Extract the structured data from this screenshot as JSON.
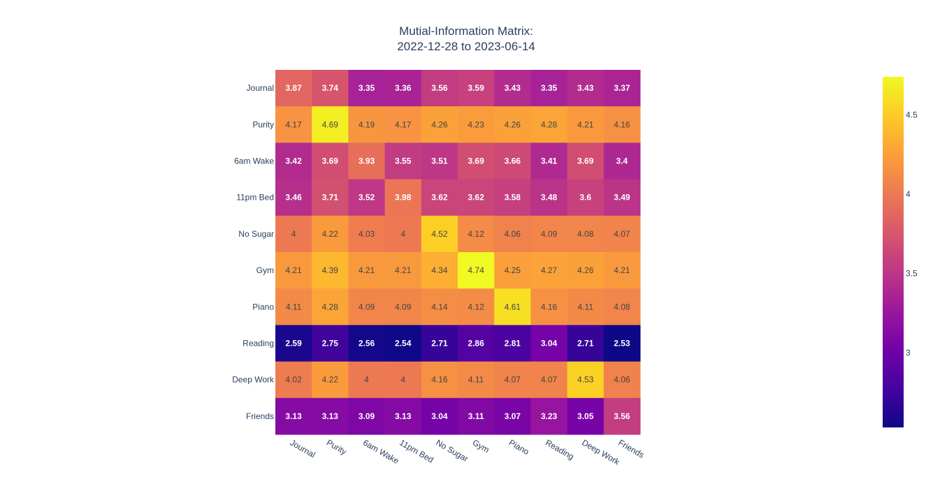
{
  "chart_data": {
    "type": "heatmap",
    "title_line1": "Mutial-Information Matrix:",
    "title_line2": "2022-12-28 to 2023-06-14",
    "x_labels": [
      "Journal",
      "Purity",
      "6am Wake",
      "11pm Bed",
      "No Sugar",
      "Gym",
      "Piano",
      "Reading",
      "Deep Work",
      "Friends"
    ],
    "y_labels": [
      "Journal",
      "Purity",
      "6am Wake",
      "11pm Bed",
      "No Sugar",
      "Gym",
      "Piano",
      "Reading",
      "Deep Work",
      "Friends"
    ],
    "z": [
      [
        3.87,
        3.74,
        3.35,
        3.36,
        3.56,
        3.59,
        3.43,
        3.35,
        3.43,
        3.37
      ],
      [
        4.17,
        4.69,
        4.19,
        4.17,
        4.26,
        4.23,
        4.26,
        4.28,
        4.21,
        4.16
      ],
      [
        3.42,
        3.69,
        3.93,
        3.55,
        3.51,
        3.69,
        3.66,
        3.41,
        3.69,
        3.4
      ],
      [
        3.46,
        3.71,
        3.52,
        3.98,
        3.62,
        3.62,
        3.58,
        3.48,
        3.6,
        3.49
      ],
      [
        4,
        4.22,
        4.03,
        4,
        4.52,
        4.12,
        4.06,
        4.09,
        4.08,
        4.07
      ],
      [
        4.21,
        4.39,
        4.21,
        4.21,
        4.34,
        4.74,
        4.25,
        4.27,
        4.26,
        4.21
      ],
      [
        4.11,
        4.28,
        4.09,
        4.09,
        4.14,
        4.12,
        4.61,
        4.16,
        4.11,
        4.08
      ],
      [
        2.59,
        2.75,
        2.56,
        2.54,
        2.71,
        2.86,
        2.81,
        3.04,
        2.71,
        2.53
      ],
      [
        4.02,
        4.22,
        4,
        4,
        4.16,
        4.11,
        4.07,
        4.07,
        4.53,
        4.06
      ],
      [
        3.13,
        3.13,
        3.09,
        3.13,
        3.04,
        3.11,
        3.07,
        3.23,
        3.05,
        3.56
      ]
    ],
    "zmin": 2.53,
    "zmax": 4.74,
    "colorscale": "plasma",
    "colorscale_stops": [
      "#0d0887",
      "#46039f",
      "#7201a8",
      "#9c179e",
      "#bd3786",
      "#d8576b",
      "#ed7953",
      "#fb9f3a",
      "#fdca26",
      "#f0f921"
    ],
    "colorbar_ticks": [
      3,
      3.5,
      4,
      4.5
    ],
    "colorbar_tick_labels": [
      "3",
      "3.5",
      "4",
      "4.5"
    ],
    "text_color_light": "#ffffff",
    "text_color_dark": "#444444",
    "axis_text_color": "#2a3f5f"
  }
}
